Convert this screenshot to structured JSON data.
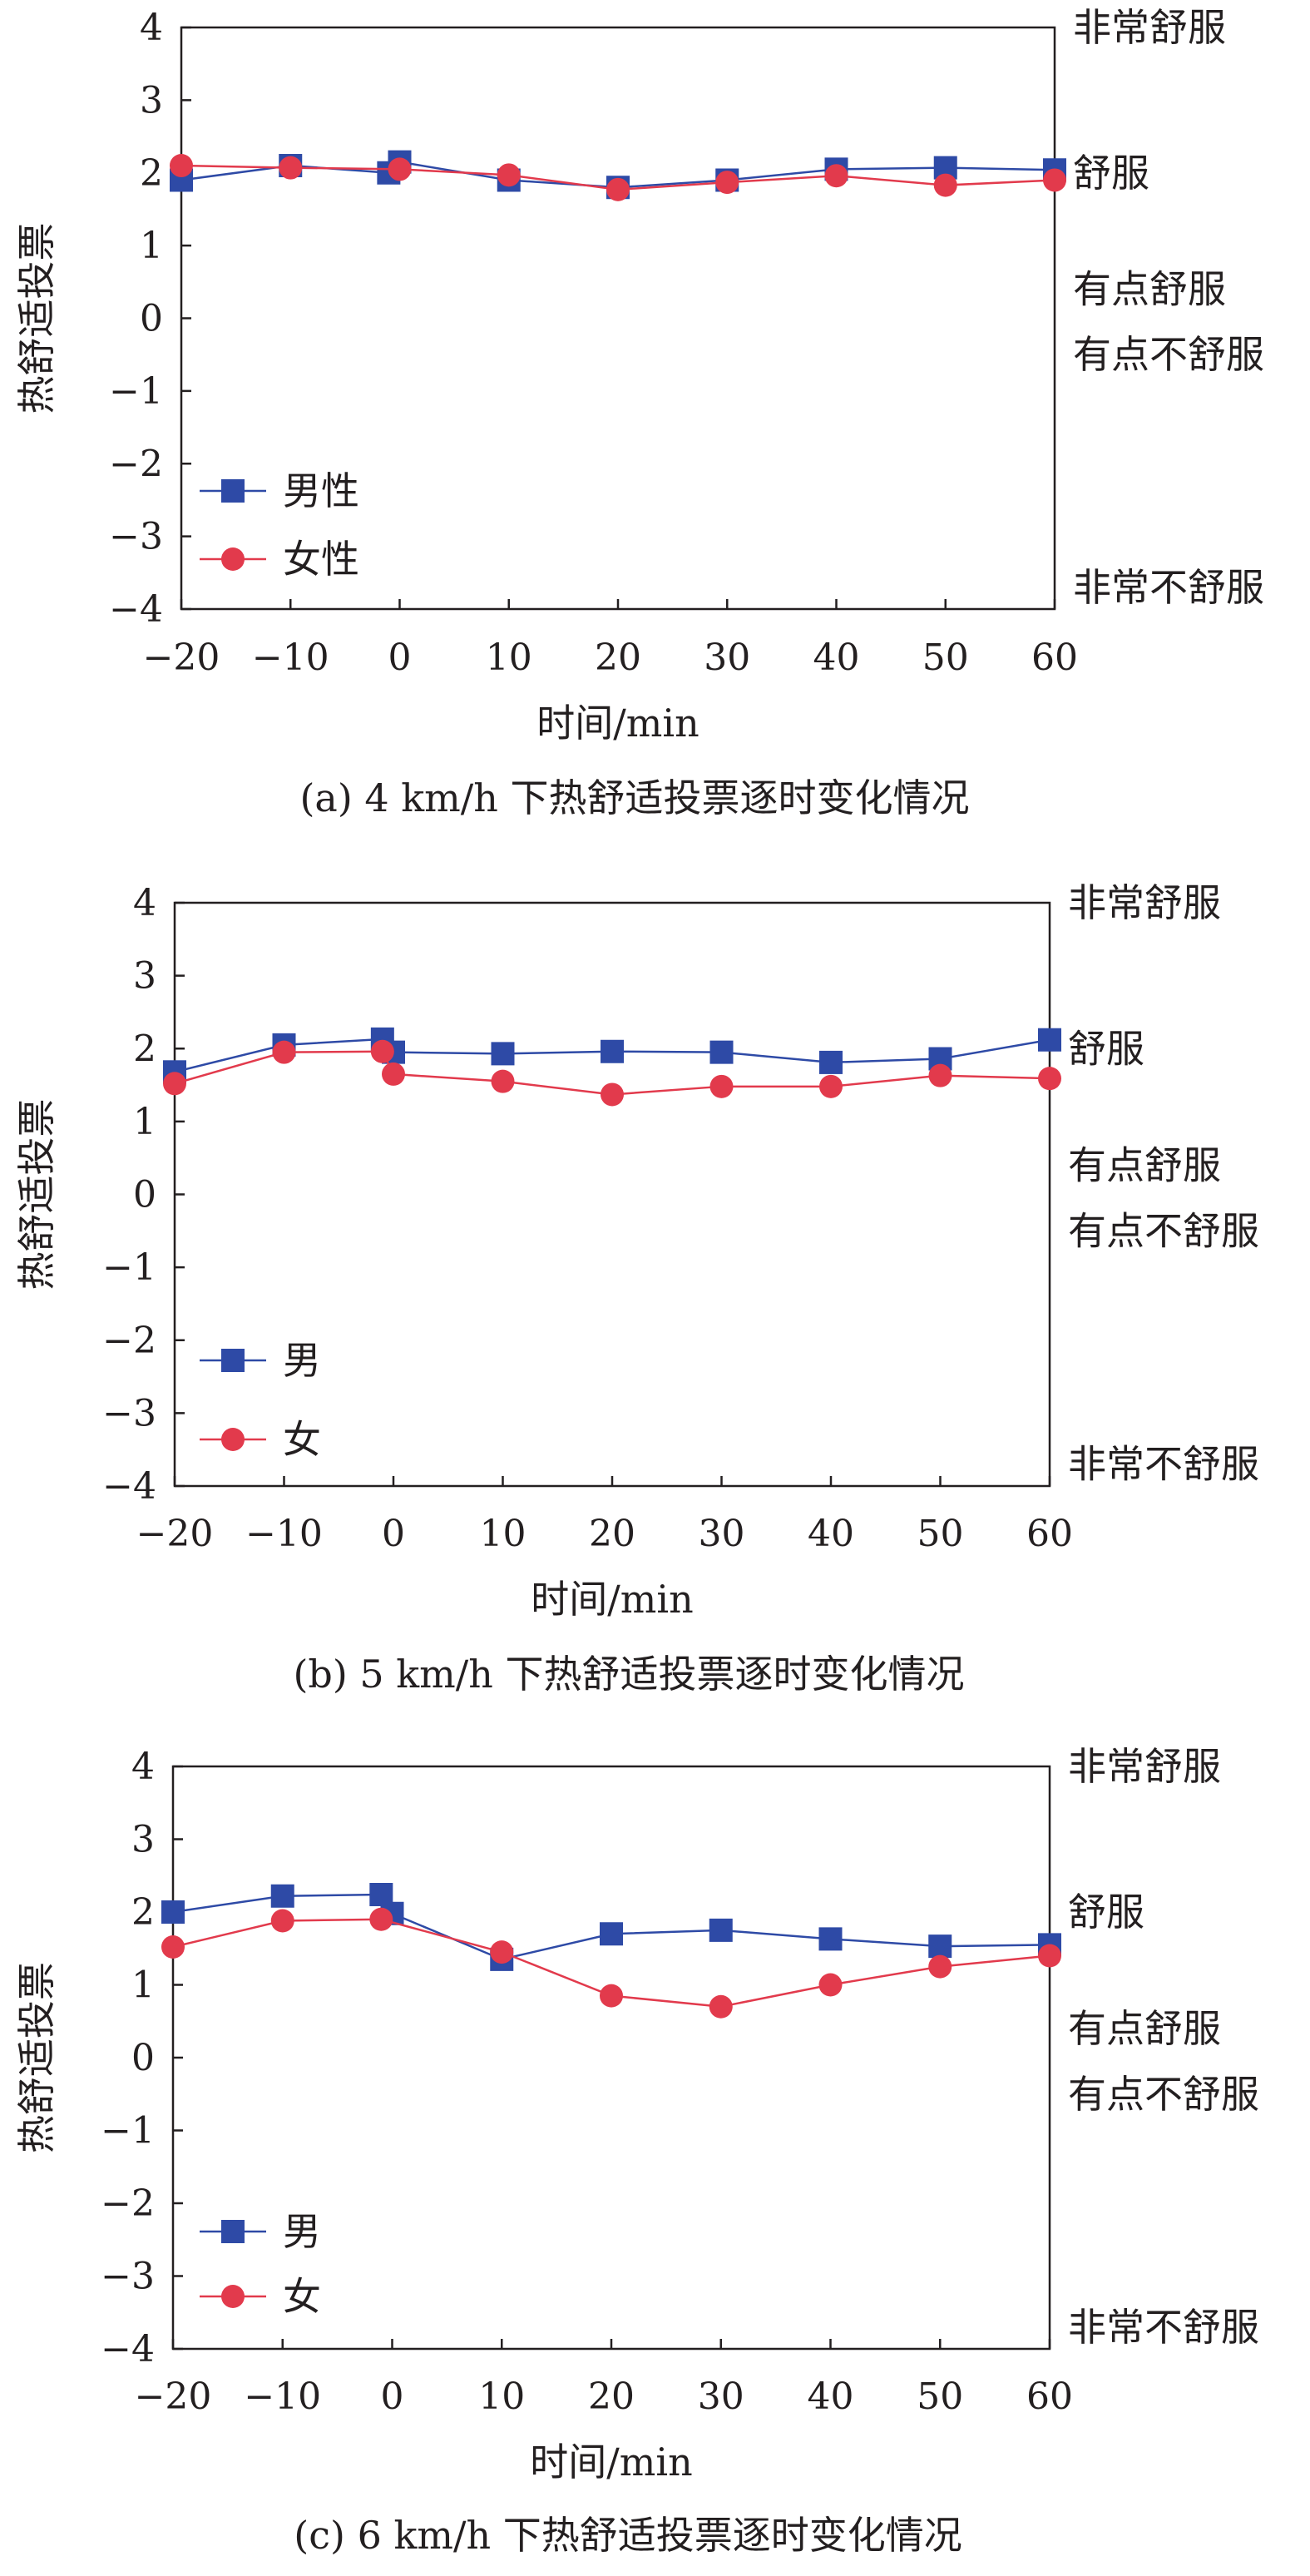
{
  "colors": {
    "male": "#2e4aa6",
    "female": "#e23a4c",
    "axis": "#231f20"
  },
  "icons": {
    "male_marker": "square-marker",
    "female_marker": "circle-marker"
  },
  "chart_data": [
    {
      "type": "line",
      "title": "(a) 4 km/h 下热舒适投票逐时变化情况",
      "xlabel": "时间/min",
      "ylabel": "热舒适投票",
      "xlim": [
        -20,
        60
      ],
      "ylim": [
        -4,
        4
      ],
      "xticks": [
        "−20",
        "−10",
        "0",
        "10",
        "20",
        "30",
        "40",
        "50",
        "60"
      ],
      "yticks": [
        "4",
        "3",
        "2",
        "1",
        "0",
        "−1",
        "−2",
        "−3",
        "−4"
      ],
      "right_labels": [
        {
          "text": "非常舒服",
          "y": 4
        },
        {
          "text": "舒服",
          "y": 2
        },
        {
          "text": "有点舒服",
          "y": 0.4
        },
        {
          "text": "有点不舒服",
          "y": -0.5
        },
        {
          "text": "非常不舒服",
          "y": -3.7
        }
      ],
      "legend": "lower-left",
      "series": [
        {
          "name": "男性",
          "color": "#2e4aa6",
          "marker": "square",
          "x": [
            -20,
            -10,
            -1,
            0,
            10,
            20,
            30,
            40,
            50,
            60
          ],
          "values": [
            1.9,
            2.1,
            2.0,
            2.15,
            1.9,
            1.8,
            1.9,
            2.05,
            2.07,
            2.04
          ]
        },
        {
          "name": "女性",
          "color": "#e23a4c",
          "marker": "circle",
          "x": [
            -20,
            -10,
            0,
            10,
            20,
            30,
            40,
            50,
            60
          ],
          "values": [
            2.1,
            2.07,
            2.05,
            1.97,
            1.77,
            1.87,
            1.96,
            1.83,
            1.9
          ]
        }
      ]
    },
    {
      "type": "line",
      "title": "(b) 5 km/h 下热舒适投票逐时变化情况",
      "xlabel": "时间/min",
      "ylabel": "热舒适投票",
      "xlim": [
        -20,
        60
      ],
      "ylim": [
        -4,
        4
      ],
      "xticks": [
        "−20",
        "−10",
        "0",
        "10",
        "20",
        "30",
        "40",
        "50",
        "60"
      ],
      "yticks": [
        "4",
        "3",
        "2",
        "1",
        "0",
        "−1",
        "−2",
        "−3",
        "−4"
      ],
      "right_labels": [
        {
          "text": "非常舒服",
          "y": 4
        },
        {
          "text": "舒服",
          "y": 2
        },
        {
          "text": "有点舒服",
          "y": 0.4
        },
        {
          "text": "有点不舒服",
          "y": -0.5
        },
        {
          "text": "非常不舒服",
          "y": -3.7
        }
      ],
      "legend": "lower-left",
      "series": [
        {
          "name": "男",
          "color": "#2e4aa6",
          "marker": "square",
          "x": [
            -20,
            -10,
            -1,
            0,
            10,
            20,
            30,
            40,
            50,
            60
          ],
          "values": [
            1.68,
            2.05,
            2.13,
            1.95,
            1.93,
            1.96,
            1.95,
            1.81,
            1.86,
            2.12
          ]
        },
        {
          "name": "女",
          "color": "#e23a4c",
          "marker": "circle",
          "x": [
            -20,
            -10,
            -1,
            0,
            10,
            20,
            30,
            40,
            50,
            60
          ],
          "values": [
            1.52,
            1.95,
            1.96,
            1.65,
            1.55,
            1.37,
            1.48,
            1.48,
            1.63,
            1.59
          ]
        }
      ]
    },
    {
      "type": "line",
      "title": "(c) 6 km/h 下热舒适投票逐时变化情况",
      "xlabel": "时间/min",
      "ylabel": "热舒适投票",
      "xlim": [
        -20,
        60
      ],
      "ylim": [
        -4,
        4
      ],
      "xticks": [
        "−20",
        "−10",
        "0",
        "10",
        "20",
        "30",
        "40",
        "50",
        "60"
      ],
      "yticks": [
        "4",
        "3",
        "2",
        "1",
        "0",
        "−1",
        "−2",
        "−3",
        "−4"
      ],
      "right_labels": [
        {
          "text": "非常舒服",
          "y": 4
        },
        {
          "text": "舒服",
          "y": 2
        },
        {
          "text": "有点舒服",
          "y": 0.4
        },
        {
          "text": "有点不舒服",
          "y": -0.5
        },
        {
          "text": "非常不舒服",
          "y": -3.7
        }
      ],
      "legend": "lower-left",
      "series": [
        {
          "name": "男",
          "color": "#2e4aa6",
          "marker": "square",
          "x": [
            -20,
            -10,
            -1,
            0,
            10,
            20,
            30,
            40,
            50,
            60
          ],
          "values": [
            2.0,
            2.22,
            2.24,
            1.98,
            1.35,
            1.7,
            1.75,
            1.63,
            1.53,
            1.55
          ]
        },
        {
          "name": "女",
          "color": "#e23a4c",
          "marker": "circle",
          "x": [
            -20,
            -10,
            -1,
            10,
            20,
            30,
            40,
            50,
            60
          ],
          "values": [
            1.52,
            1.88,
            1.9,
            1.45,
            0.85,
            0.7,
            1.0,
            1.25,
            1.4
          ]
        }
      ]
    }
  ]
}
